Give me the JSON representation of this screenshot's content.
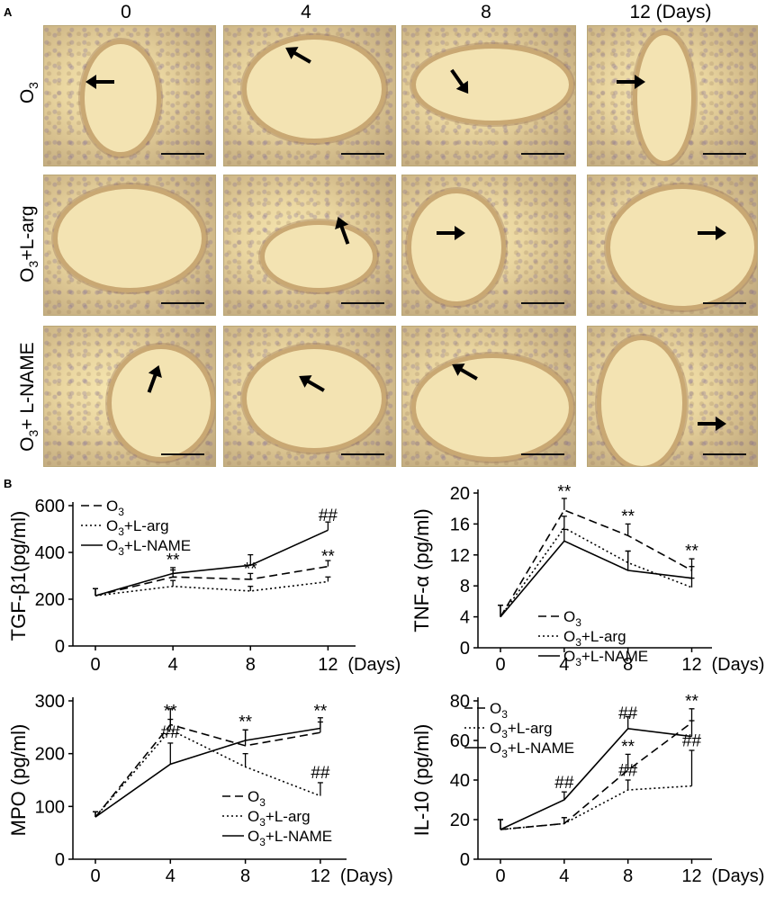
{
  "panel_a": {
    "letter": "A",
    "days": [
      "0",
      "4",
      "8",
      "12 (Days)"
    ],
    "rows": [
      {
        "label_main": "O",
        "label_sub": "3",
        "label_rest": ""
      },
      {
        "label_main": "O",
        "label_sub": "3",
        "label_rest": "+L-arg"
      },
      {
        "label_main": "O",
        "label_sub": "3",
        "label_rest": "+ L-NAME"
      }
    ]
  },
  "panel_b": {
    "letter": "B"
  },
  "chart_data": [
    {
      "type": "line",
      "ylabel": "TGF-β1(pg/ml)",
      "xlabel": "(Days)",
      "x": [
        0,
        4,
        8,
        12
      ],
      "xticks": [
        "0",
        "4",
        "8",
        "12"
      ],
      "yticks": [
        "0",
        "200",
        "400",
        "600"
      ],
      "ylim": [
        0,
        600
      ],
      "legend": [
        "O3",
        "O3+L-arg",
        "O3+L-NAME"
      ],
      "series": [
        {
          "name": "O3",
          "style": "dashed",
          "values": [
            215,
            295,
            285,
            340
          ],
          "errors": [
            30,
            30,
            25,
            25
          ]
        },
        {
          "name": "O3+L-arg",
          "style": "dotted",
          "values": [
            215,
            255,
            235,
            275
          ],
          "errors": [
            30,
            25,
            20,
            20
          ]
        },
        {
          "name": "O3+L-NAME",
          "style": "solid",
          "values": [
            215,
            310,
            345,
            495
          ],
          "errors": [
            30,
            25,
            45,
            35
          ]
        }
      ],
      "annotations": [
        {
          "x": 4,
          "y": 345,
          "text": "**"
        },
        {
          "x": 8,
          "y": 305,
          "text": "**"
        },
        {
          "x": 12,
          "y": 360,
          "text": "**"
        },
        {
          "x": 12,
          "y": 535,
          "text": "##"
        }
      ]
    },
    {
      "type": "line",
      "ylabel": "TNF-α (pg/ml)",
      "xlabel": "(Days)",
      "x": [
        0,
        4,
        8,
        12
      ],
      "xticks": [
        "0",
        "4",
        "8",
        "12"
      ],
      "yticks": [
        "0",
        "4",
        "8",
        "12",
        "16",
        "20"
      ],
      "ylim": [
        0,
        20
      ],
      "legend": [
        "O3",
        "O3+L-arg",
        "O3+L-NAME"
      ],
      "series": [
        {
          "name": "O3",
          "style": "dashed",
          "values": [
            4,
            17.8,
            14.5,
            10
          ],
          "errors": [
            1.5,
            1.5,
            1.5,
            1.5
          ]
        },
        {
          "name": "O3+L-arg",
          "style": "dotted",
          "values": [
            4,
            15.5,
            11,
            7.8
          ],
          "errors": [
            1.5,
            1.5,
            1.5,
            1.2
          ]
        },
        {
          "name": "O3+L-NAME",
          "style": "solid",
          "values": [
            4,
            13.8,
            10,
            9
          ],
          "errors": [
            1.5,
            1.5,
            2.5,
            1.5
          ]
        }
      ],
      "annotations": [
        {
          "x": 4,
          "y": 19.5,
          "text": "**"
        },
        {
          "x": 8,
          "y": 16.3,
          "text": "**"
        },
        {
          "x": 12,
          "y": 11.8,
          "text": "**"
        }
      ]
    },
    {
      "type": "line",
      "ylabel": "MPO (pg/ml)",
      "xlabel": "(Days)",
      "x": [
        0,
        4,
        8,
        12
      ],
      "xticks": [
        "0",
        "4",
        "8",
        "12"
      ],
      "yticks": [
        "0",
        "100",
        "200",
        "300"
      ],
      "ylim": [
        0,
        300
      ],
      "legend": [
        "O3",
        "O3+L-arg",
        "O3+L-NAME"
      ],
      "series": [
        {
          "name": "O3",
          "style": "dashed",
          "values": [
            80,
            255,
            215,
            240
          ],
          "errors": [
            10,
            30,
            30,
            20
          ]
        },
        {
          "name": "O3+L-arg",
          "style": "dotted",
          "values": [
            80,
            245,
            175,
            120
          ],
          "errors": [
            10,
            20,
            25,
            25
          ]
        },
        {
          "name": "O3+L-NAME",
          "style": "solid",
          "values": [
            80,
            180,
            225,
            248
          ],
          "errors": [
            10,
            40,
            20,
            20
          ]
        }
      ],
      "annotations": [
        {
          "x": 4,
          "y": 270,
          "text": "**"
        },
        {
          "x": 4,
          "y": 230,
          "text": "##"
        },
        {
          "x": 8,
          "y": 250,
          "text": "**"
        },
        {
          "x": 12,
          "y": 270,
          "text": "**"
        },
        {
          "x": 12,
          "y": 153,
          "text": "##"
        }
      ]
    },
    {
      "type": "line",
      "ylabel": "IL-10 (pg/ml)",
      "xlabel": "(Days)",
      "x": [
        0,
        4,
        8,
        12
      ],
      "xticks": [
        "0",
        "4",
        "8",
        "12"
      ],
      "yticks": [
        "0",
        "20",
        "40",
        "60",
        "80"
      ],
      "ylim": [
        0,
        80
      ],
      "legend": [
        "O3",
        "O3+L-arg",
        "O3+L-NAME"
      ],
      "series": [
        {
          "name": "O3",
          "style": "dashed",
          "values": [
            15,
            18,
            45,
            69
          ],
          "errors": [
            5,
            3,
            8,
            7
          ]
        },
        {
          "name": "O3+L-arg",
          "style": "dotted",
          "values": [
            15,
            18,
            35,
            37
          ],
          "errors": [
            5,
            3,
            5,
            18
          ]
        },
        {
          "name": "O3+L-NAME",
          "style": "solid",
          "values": [
            15,
            30,
            66,
            62
          ],
          "errors": [
            5,
            4,
            6,
            8
          ]
        }
      ],
      "annotations": [
        {
          "x": 4,
          "y": 36,
          "text": "##"
        },
        {
          "x": 8,
          "y": 71,
          "text": "##"
        },
        {
          "x": 8,
          "y": 54,
          "text": "**"
        },
        {
          "x": 8,
          "y": 42,
          "text": "##"
        },
        {
          "x": 12,
          "y": 77,
          "text": "**"
        },
        {
          "x": 12,
          "y": 57,
          "text": "##"
        }
      ]
    }
  ]
}
